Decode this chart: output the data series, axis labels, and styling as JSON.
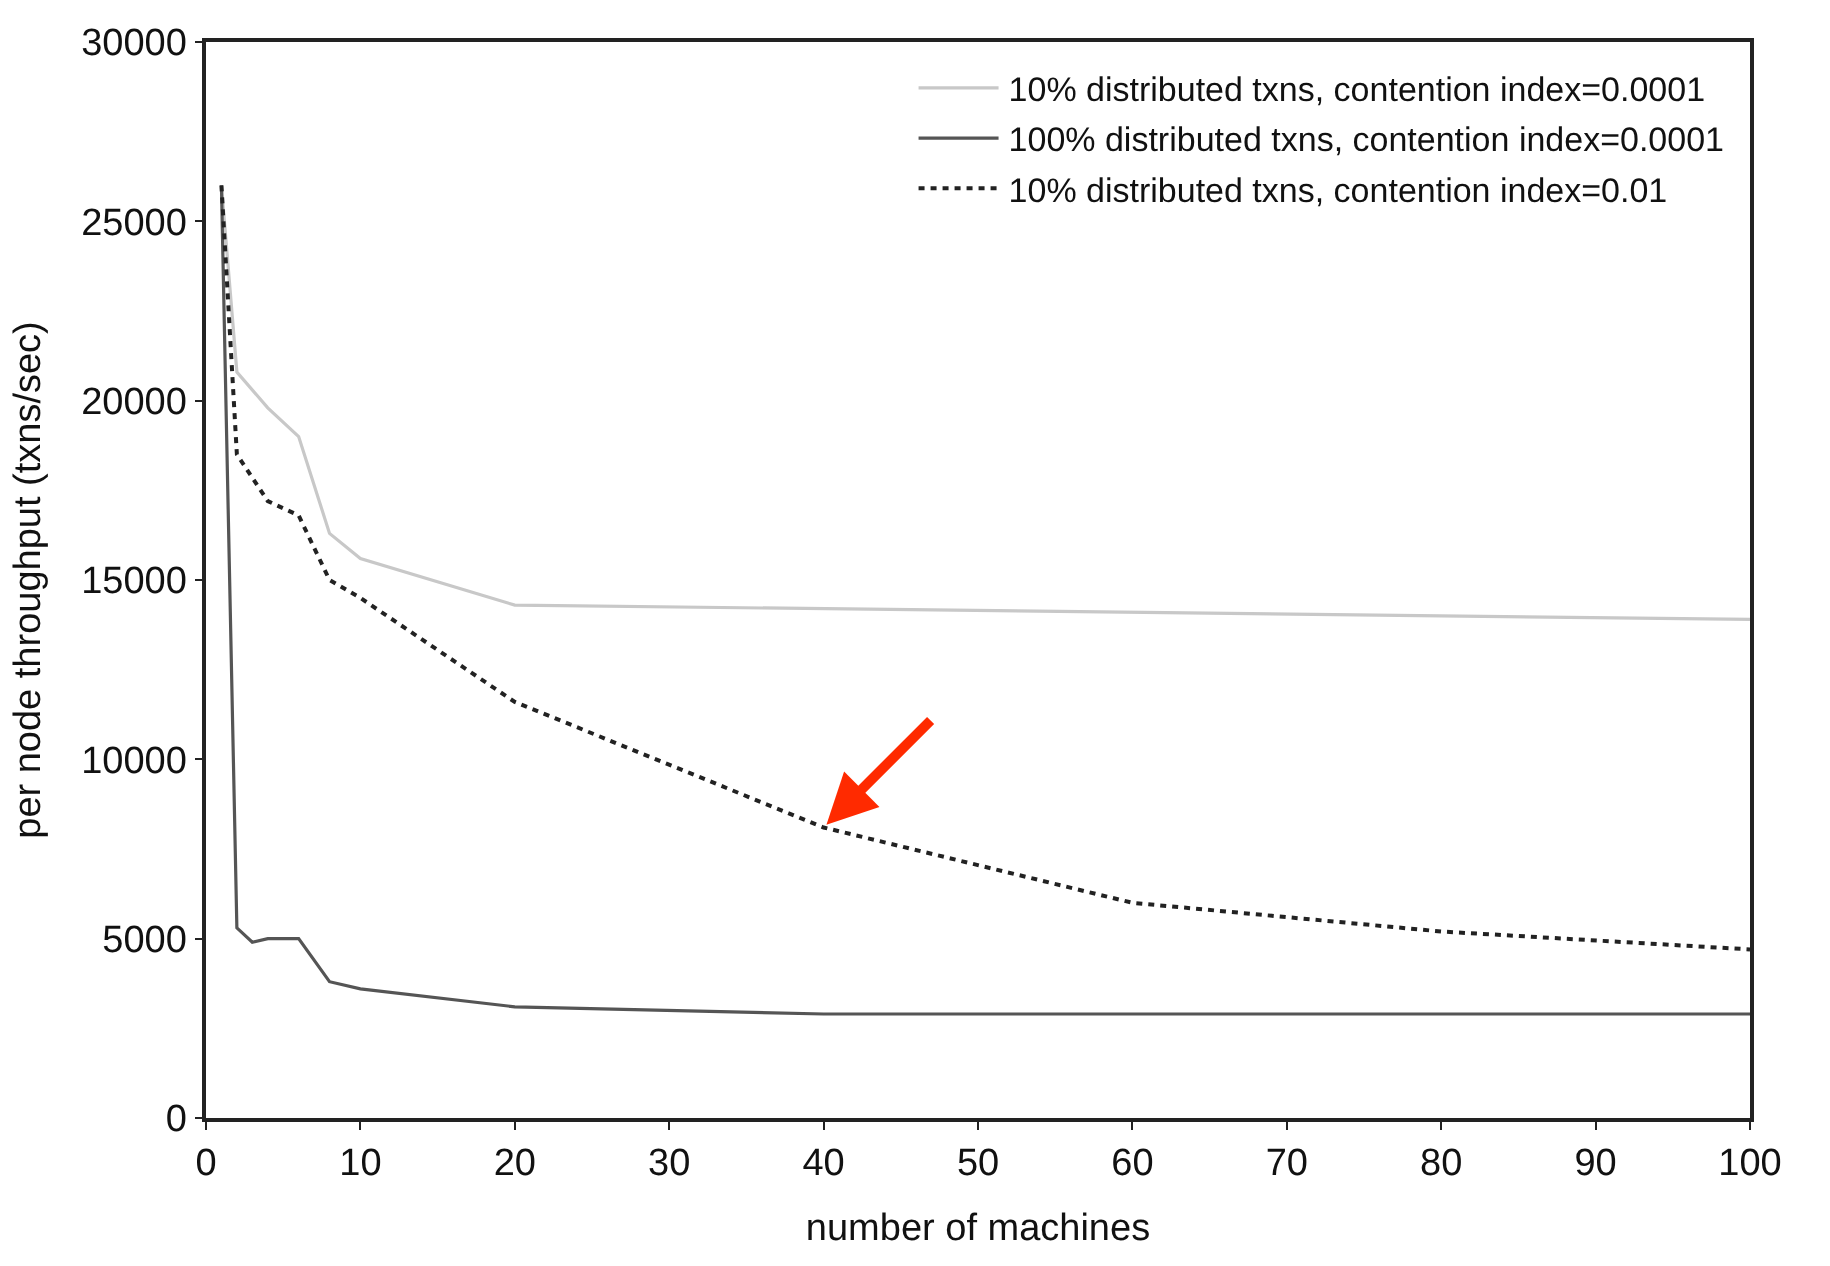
{
  "chart_data": {
    "type": "line",
    "xlabel": "number of machines",
    "ylabel": "per node throughput (txns/sec)",
    "xlim": [
      0,
      100
    ],
    "xticks": [
      0,
      10,
      20,
      30,
      40,
      50,
      60,
      70,
      80,
      90,
      100
    ],
    "ylim": [
      0,
      30000
    ],
    "yticks": [
      0,
      5000,
      10000,
      15000,
      20000,
      25000,
      30000
    ],
    "legend": "top right",
    "marker": "none",
    "series": [
      {
        "name": "10% distributed txns, contention index=0.0001",
        "color": "#c8c8c8",
        "line_style": "solid",
        "x": [
          1,
          2,
          4,
          6,
          8,
          10,
          20,
          100
        ],
        "values": [
          26000,
          20800,
          19800,
          19000,
          16300,
          15600,
          14300,
          13900
        ]
      },
      {
        "name": "100% distributed txns, contention index=0.0001",
        "color": "#555555",
        "line_style": "solid",
        "x": [
          1,
          2,
          3,
          4,
          6,
          8,
          10,
          20,
          40,
          100
        ],
        "values": [
          26000,
          5300,
          4900,
          5000,
          5000,
          3800,
          3600,
          3100,
          2900,
          2900
        ]
      },
      {
        "name": "10% distributed txns, contention index=0.01",
        "color": "#222222",
        "line_style": "dotted",
        "x": [
          1,
          2,
          4,
          6,
          8,
          10,
          20,
          40,
          60,
          80,
          100
        ],
        "values": [
          26000,
          18500,
          17200,
          16800,
          15000,
          14500,
          11600,
          8100,
          6000,
          5200,
          4700
        ]
      }
    ]
  }
}
